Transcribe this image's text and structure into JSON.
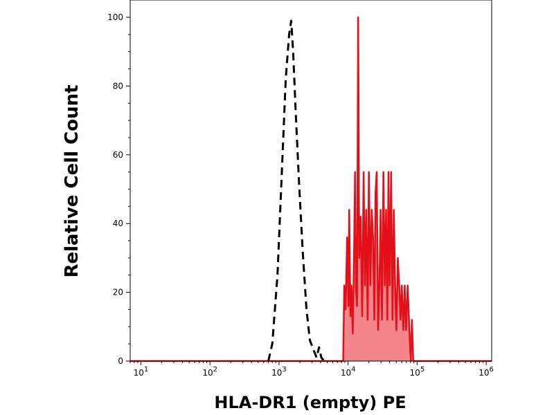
{
  "chart_data": {
    "type": "area",
    "xlabel": "HLA-DR1 (empty) PE",
    "ylabel": "Relative Cell Count",
    "x_scale": "log",
    "xlim": [
      7,
      1200000
    ],
    "ylim": [
      0,
      100
    ],
    "y_ticks": [
      0,
      20,
      40,
      60,
      80,
      100
    ],
    "x_ticks": [
      {
        "value": 10,
        "base": "10",
        "exp": "1"
      },
      {
        "value": 100,
        "base": "10",
        "exp": "2"
      },
      {
        "value": 1000,
        "base": "10",
        "exp": "3"
      },
      {
        "value": 10000,
        "base": "10",
        "exp": "4"
      },
      {
        "value": 100000,
        "base": "10",
        "exp": "5"
      },
      {
        "value": 1000000,
        "base": "10",
        "exp": "6"
      }
    ],
    "grid": false,
    "series": [
      {
        "style": "dashed",
        "color": "#000000",
        "fill": false,
        "points": [
          [
            700,
            0
          ],
          [
            800,
            5
          ],
          [
            950,
            25
          ],
          [
            1100,
            55
          ],
          [
            1250,
            82
          ],
          [
            1400,
            95
          ],
          [
            1500,
            99
          ],
          [
            1600,
            90
          ],
          [
            1750,
            72
          ],
          [
            1950,
            52
          ],
          [
            2200,
            32
          ],
          [
            2500,
            15
          ],
          [
            2800,
            6
          ],
          [
            3200,
            3
          ],
          [
            3500,
            1
          ],
          [
            3800,
            4
          ],
          [
            4100,
            1
          ],
          [
            4500,
            0
          ]
        ]
      },
      {
        "style": "solid",
        "color": "#e3101a",
        "fill": true,
        "fill_color": "#f4868b",
        "points": [
          [
            7,
            0
          ],
          [
            8000,
            0
          ],
          [
            8500,
            0
          ],
          [
            8800,
            22
          ],
          [
            9200,
            15
          ],
          [
            9700,
            36
          ],
          [
            10100,
            16
          ],
          [
            10400,
            44
          ],
          [
            10800,
            13
          ],
          [
            11200,
            22
          ],
          [
            11700,
            8
          ],
          [
            12200,
            32
          ],
          [
            12600,
            55
          ],
          [
            13000,
            21
          ],
          [
            13500,
            16
          ],
          [
            14000,
            100
          ],
          [
            14500,
            30
          ],
          [
            15200,
            42
          ],
          [
            16000,
            13
          ],
          [
            16800,
            55
          ],
          [
            17500,
            22
          ],
          [
            18300,
            44
          ],
          [
            19200,
            12
          ],
          [
            20000,
            55
          ],
          [
            21000,
            22
          ],
          [
            22000,
            44
          ],
          [
            23000,
            36
          ],
          [
            24000,
            12
          ],
          [
            25000,
            49
          ],
          [
            26000,
            55
          ],
          [
            27200,
            9
          ],
          [
            28400,
            22
          ],
          [
            29600,
            44
          ],
          [
            31000,
            12
          ],
          [
            32500,
            55
          ],
          [
            34000,
            22
          ],
          [
            35500,
            44
          ],
          [
            37000,
            12
          ],
          [
            38500,
            55
          ],
          [
            40000,
            22
          ],
          [
            42000,
            55
          ],
          [
            44000,
            12
          ],
          [
            46000,
            44
          ],
          [
            48000,
            22
          ],
          [
            50000,
            9
          ],
          [
            52500,
            30
          ],
          [
            55000,
            22
          ],
          [
            57500,
            12
          ],
          [
            60000,
            22
          ],
          [
            63000,
            9
          ],
          [
            66000,
            22
          ],
          [
            69000,
            9
          ],
          [
            73000,
            22
          ],
          [
            77000,
            9
          ],
          [
            81000,
            0
          ],
          [
            84000,
            12
          ],
          [
            88000,
            0
          ],
          [
            1200000,
            0
          ]
        ]
      }
    ]
  }
}
